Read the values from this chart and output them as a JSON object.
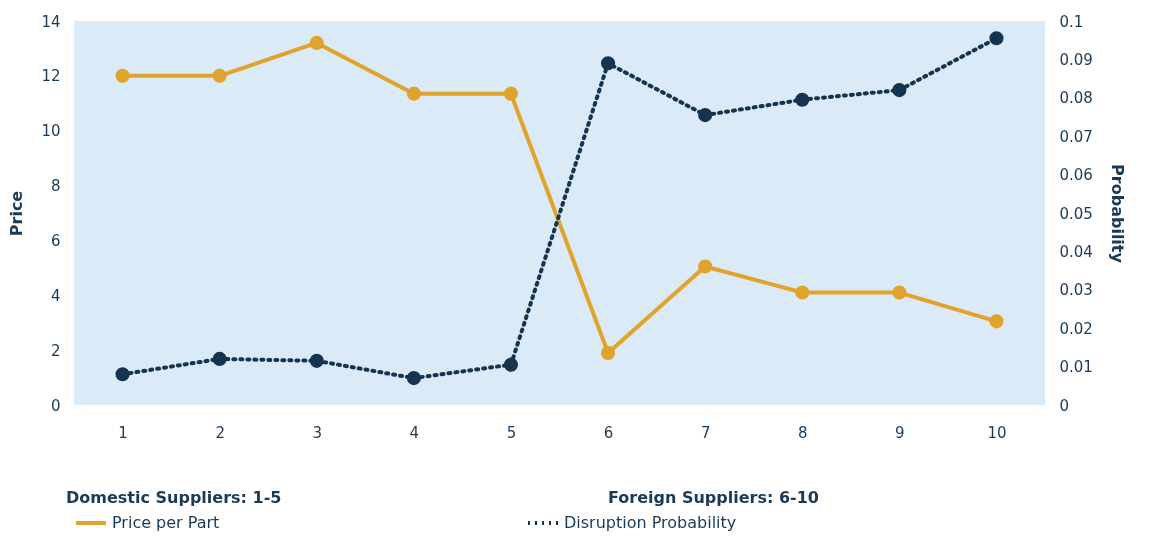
{
  "chart_data": {
    "type": "line",
    "ylabel": "Price",
    "y2label": "Probability",
    "categories": [
      "1",
      "2",
      "3",
      "4",
      "5",
      "6",
      "7",
      "8",
      "9",
      "10"
    ],
    "series": [
      {
        "name": "Price per Part",
        "color": "#e0a32b",
        "line_style": "solid",
        "values": [
          12,
          12,
          13.2,
          11.35,
          11.35,
          1.9,
          5.05,
          4.1,
          4.1,
          3.05
        ]
      },
      {
        "name": "Disruption Probability",
        "color": "#15344f",
        "line_style": "dotted",
        "axis": "y2",
        "values": [
          0.008,
          0.012,
          0.0115,
          0.007,
          0.0105,
          0.089,
          0.0755,
          0.0795,
          0.082,
          0.0955
        ]
      }
    ],
    "ylim": [
      0,
      14
    ],
    "yticks": [
      0,
      2,
      4,
      6,
      8,
      10,
      12,
      14
    ],
    "y2lim": [
      0,
      0.1
    ],
    "y2ticks": [
      0,
      0.01,
      0.02,
      0.03,
      0.04,
      0.05,
      0.06,
      0.07,
      0.08,
      0.09,
      0.1
    ],
    "annotations": [
      "Domestic Suppliers: 1-5",
      "Foreign Suppliers: 6-10"
    ],
    "marker": "circle",
    "grid": false,
    "legend": "bottom"
  }
}
